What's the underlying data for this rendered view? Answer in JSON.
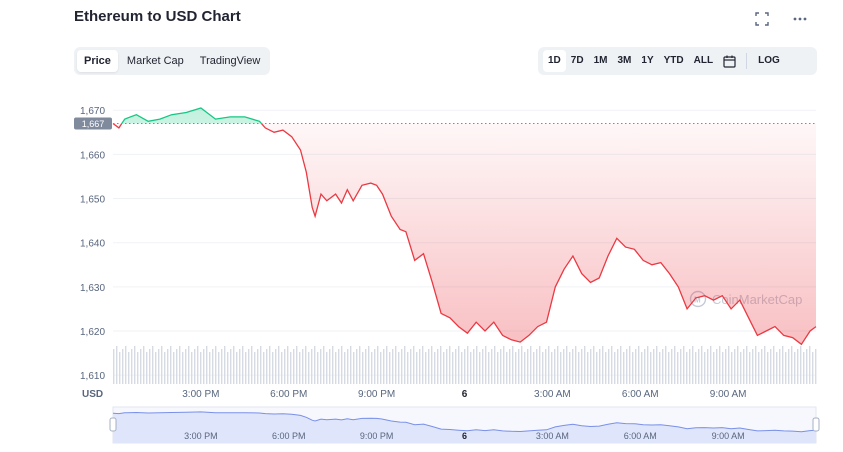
{
  "header": {
    "title": "Ethereum to USD Chart",
    "fullscreen_icon": "expand-icon",
    "more_icon": "more-horizontal-icon"
  },
  "tabs": [
    {
      "label": "Price",
      "active": true
    },
    {
      "label": "Market Cap",
      "active": false
    },
    {
      "label": "TradingView",
      "active": false
    }
  ],
  "ranges": [
    {
      "label": "1D",
      "active": true
    },
    {
      "label": "7D",
      "active": false
    },
    {
      "label": "1M",
      "active": false
    },
    {
      "label": "3M",
      "active": false
    },
    {
      "label": "1Y",
      "active": false
    },
    {
      "label": "YTD",
      "active": false
    },
    {
      "label": "ALL",
      "active": false
    }
  ],
  "calendar_icon": "calendar-icon",
  "log_label": "LOG",
  "watermark": "CoinMarketCap",
  "colors": {
    "up": "#16c784",
    "down": "#ea3943",
    "navigator": "#7a90e8"
  },
  "chart_data": {
    "type": "line",
    "currency_label": "USD",
    "ylim": [
      1608,
      1673
    ],
    "y_ticks": [
      1610,
      1620,
      1630,
      1640,
      1650,
      1660,
      1670
    ],
    "y_tick_labels": [
      "1,610",
      "1,620",
      "1,630",
      "1,640",
      "1,650",
      "1,660",
      "1,670"
    ],
    "current_price": 1667,
    "current_price_label": "1,667",
    "x_tick_labels": [
      "3:00 PM",
      "6:00 PM",
      "9:00 PM",
      "6",
      "3:00 AM",
      "6:00 AM",
      "9:00 AM"
    ],
    "x_tick_hours": [
      3,
      6,
      9,
      12,
      15,
      18,
      21
    ],
    "x_range_hours": [
      0,
      24
    ],
    "series": [
      {
        "x": [
          0,
          0.2,
          0.4,
          0.8,
          1.2,
          1.6,
          2.0,
          2.5,
          3.0,
          3.5,
          4.0,
          4.5,
          5.0,
          5.2,
          5.5,
          5.8,
          6.1,
          6.4,
          6.6,
          6.8,
          6.9,
          7.1,
          7.3,
          7.6,
          7.8,
          8.0,
          8.2,
          8.5,
          8.8,
          9.0,
          9.2,
          9.5,
          9.8,
          10.0,
          10.3,
          10.6,
          10.9,
          11.2,
          11.5,
          11.8,
          12.1,
          12.4,
          12.7,
          13.0,
          13.3,
          13.6,
          13.9,
          14.2,
          14.5,
          14.8,
          15.1,
          15.4,
          15.7,
          16.0,
          16.3,
          16.6,
          16.9,
          17.2,
          17.5,
          17.8,
          18.1,
          18.4,
          18.7,
          19.0,
          19.3,
          19.6,
          19.9,
          20.2,
          20.5,
          20.8,
          21.1,
          21.4,
          21.7,
          22.0,
          22.3,
          22.6,
          22.9,
          23.2,
          23.5,
          23.8,
          24.0
        ],
        "values": [
          1667,
          1666,
          1668,
          1669,
          1667.5,
          1668,
          1669,
          1669.5,
          1670.5,
          1668,
          1668.5,
          1668.5,
          1667.5,
          1666,
          1665,
          1665.5,
          1664,
          1661,
          1656,
          1648,
          1646,
          1651,
          1649.5,
          1651,
          1649,
          1652,
          1649.5,
          1653,
          1653.5,
          1653,
          1651,
          1646,
          1643,
          1642.5,
          1636,
          1637.5,
          1631,
          1624,
          1623,
          1621,
          1619.5,
          1622,
          1620,
          1622,
          1619,
          1618,
          1617.5,
          1619,
          1621,
          1622,
          1630,
          1634,
          1637,
          1633,
          1631,
          1632,
          1637,
          1641,
          1639,
          1638.5,
          1636,
          1635,
          1635.5,
          1633,
          1630,
          1625,
          1627.5,
          1628,
          1627,
          1628,
          1625,
          1627,
          1623,
          1619,
          1620,
          1621,
          1619,
          1618.5,
          1617,
          1620,
          1621
        ]
      }
    ],
    "volume_bars": true,
    "navigator": {
      "x_tick_labels": [
        "3:00 PM",
        "6:00 PM",
        "9:00 PM",
        "6",
        "3:00 AM",
        "6:00 AM",
        "9:00 AM"
      ]
    }
  }
}
